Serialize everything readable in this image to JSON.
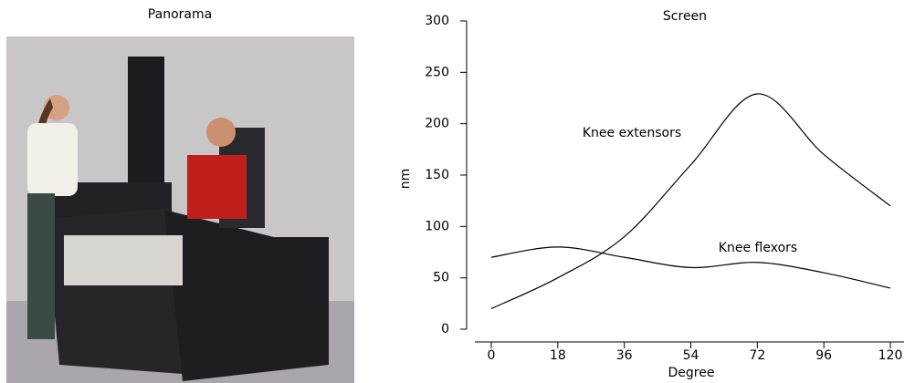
{
  "photo": {
    "title": "Panorama"
  },
  "chart_data": {
    "type": "line",
    "title": "Screen",
    "x_label": "Degree",
    "y_label": "nm",
    "categories": [
      "0",
      "18",
      "36",
      "54",
      "72",
      "96",
      "120"
    ],
    "series": [
      {
        "name": "Knee extensors",
        "color": "#000000",
        "values": [
          20,
          50,
          90,
          160,
          229,
          170,
          120
        ]
      },
      {
        "name": "Knee flexors",
        "color": "#000000",
        "values": [
          70,
          80,
          70,
          60,
          65,
          55,
          40
        ]
      }
    ],
    "ylim": [
      0,
      300
    ],
    "yticks": [
      0,
      50,
      100,
      150,
      200,
      250,
      300
    ],
    "grid": false
  }
}
